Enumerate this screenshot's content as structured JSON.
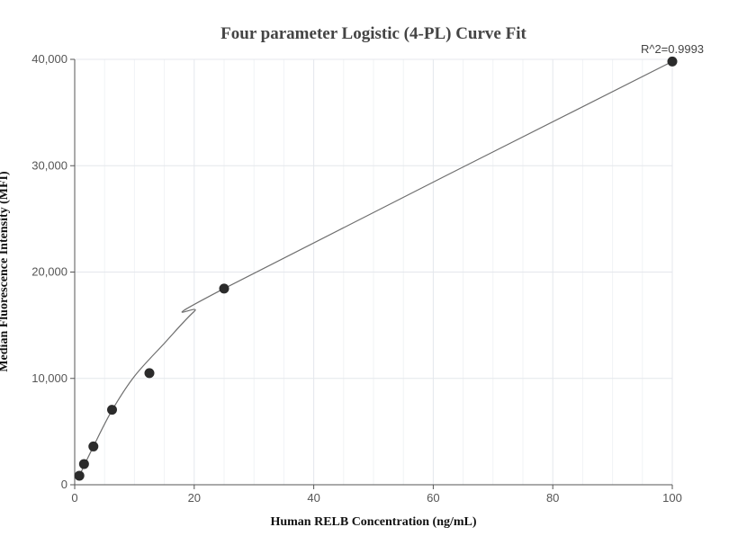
{
  "chart_data": {
    "type": "scatter",
    "title": "Four parameter Logistic (4-PL) Curve Fit",
    "xlabel": "Human RELB Concentration (ng/mL)",
    "ylabel": "Median Fluorescence Intensity (MFI)",
    "xlim": [
      0,
      100
    ],
    "ylim": [
      0,
      40000
    ],
    "x_ticks": [
      0,
      20,
      40,
      60,
      80,
      100
    ],
    "x_tick_labels": [
      "0",
      "20",
      "40",
      "60",
      "80",
      "100"
    ],
    "y_ticks": [
      0,
      10000,
      20000,
      30000,
      40000
    ],
    "y_tick_labels": [
      "0",
      "10,000",
      "20,000",
      "30,000",
      "40,000"
    ],
    "grid": true,
    "annotation": "R^2=0.9993",
    "points": {
      "x": [
        0.78,
        1.56,
        3.13,
        6.25,
        12.5,
        25,
        100
      ],
      "y": [
        850,
        1950,
        3600,
        7050,
        10500,
        18450,
        39800
      ]
    },
    "fit_curve": {
      "x": [
        0.78,
        3.13,
        6.25,
        10,
        15,
        20,
        25,
        100
      ],
      "y": [
        850,
        3600,
        7000,
        10200,
        13300,
        16300,
        18450,
        39800
      ]
    },
    "colors": {
      "points": "#2b2b2b",
      "curve": "#6e6e6e",
      "grid_major": "#e4e7ec",
      "grid_minor": "#f1f3f6",
      "axis": "#555555"
    }
  }
}
